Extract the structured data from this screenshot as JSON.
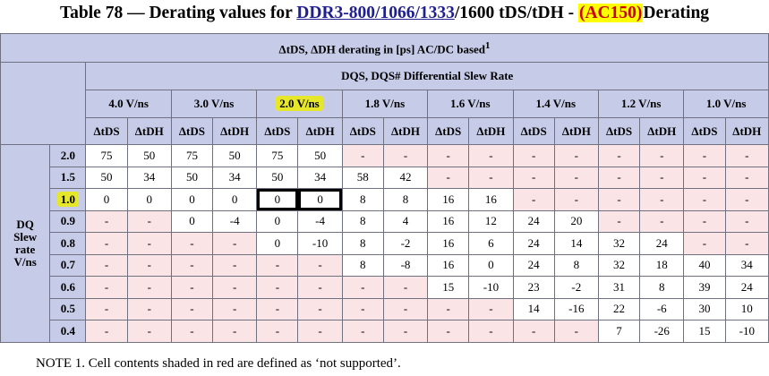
{
  "title": {
    "prefix": "Table 78 — Derating values for ",
    "link": "DDR3-800/1066/1333",
    "middle": "/1600 tDS/tDH - ",
    "highlight": "(AC150)",
    "suffix": "Derating"
  },
  "header": {
    "main": "ΔtDS, ΔDH derating in [ps]  AC/DC based",
    "main_superscript": "1",
    "group": "DQS, DQS# Differential Slew Rate",
    "slew_rates": [
      "4.0 V/ns",
      "3.0 V/ns",
      "2.0 V/ns",
      "1.8 V/ns",
      "1.6 V/ns",
      "1.4 V/ns",
      "1.2 V/ns",
      "1.0 V/ns"
    ],
    "sub_tds": "ΔtDS",
    "sub_tdh": "ΔtDH"
  },
  "side_label": [
    "DQ",
    "Slew",
    "rate",
    "V/ns"
  ],
  "rows": [
    {
      "rate": "2.0",
      "values": [
        "75",
        "50",
        "75",
        "50",
        "75",
        "50",
        "-",
        "-",
        "-",
        "-",
        "-",
        "-",
        "-",
        "-",
        "-",
        "-"
      ]
    },
    {
      "rate": "1.5",
      "values": [
        "50",
        "34",
        "50",
        "34",
        "50",
        "34",
        "58",
        "42",
        "-",
        "-",
        "-",
        "-",
        "-",
        "-",
        "-",
        "-"
      ]
    },
    {
      "rate": "1.0",
      "values": [
        "0",
        "0",
        "0",
        "0",
        "0",
        "0",
        "8",
        "8",
        "16",
        "16",
        "-",
        "-",
        "-",
        "-",
        "-",
        "-"
      ]
    },
    {
      "rate": "0.9",
      "values": [
        "-",
        "-",
        "0",
        "-4",
        "0",
        "-4",
        "8",
        "4",
        "16",
        "12",
        "24",
        "20",
        "-",
        "-",
        "-",
        "-"
      ]
    },
    {
      "rate": "0.8",
      "values": [
        "-",
        "-",
        "-",
        "-",
        "0",
        "-10",
        "8",
        "-2",
        "16",
        "6",
        "24",
        "14",
        "32",
        "24",
        "-",
        "-"
      ]
    },
    {
      "rate": "0.7",
      "values": [
        "-",
        "-",
        "-",
        "-",
        "-",
        "-",
        "8",
        "-8",
        "16",
        "0",
        "24",
        "8",
        "32",
        "18",
        "40",
        "34"
      ]
    },
    {
      "rate": "0.6",
      "values": [
        "-",
        "-",
        "-",
        "-",
        "-",
        "-",
        "-",
        "-",
        "15",
        "-10",
        "23",
        "-2",
        "31",
        "8",
        "39",
        "24"
      ]
    },
    {
      "rate": "0.5",
      "values": [
        "-",
        "-",
        "-",
        "-",
        "-",
        "-",
        "-",
        "-",
        "-",
        "-",
        "14",
        "-16",
        "22",
        "-6",
        "30",
        "10"
      ]
    },
    {
      "rate": "0.4",
      "values": [
        "-",
        "-",
        "-",
        "-",
        "-",
        "-",
        "-",
        "-",
        "-",
        "-",
        "-",
        "-",
        "7",
        "-26",
        "15",
        "-10"
      ]
    }
  ],
  "not_supported": [
    [
      6,
      7,
      8,
      9,
      10,
      11,
      12,
      13,
      14,
      15
    ],
    [
      8,
      9,
      10,
      11,
      12,
      13,
      14,
      15
    ],
    [
      10,
      11,
      12,
      13,
      14,
      15
    ],
    [
      0,
      1,
      12,
      13,
      14,
      15
    ],
    [
      0,
      1,
      2,
      3,
      14,
      15
    ],
    [
      0,
      1,
      2,
      3,
      4,
      5
    ],
    [
      0,
      1,
      2,
      3,
      4,
      5,
      6,
      7
    ],
    [
      0,
      1,
      2,
      3,
      4,
      5,
      6,
      7,
      8,
      9
    ],
    [
      0,
      1,
      2,
      3,
      4,
      5,
      6,
      7,
      8,
      9,
      10,
      11
    ]
  ],
  "highlighted_slew_rate_index": 2,
  "highlighted_row_index": 2,
  "boxed_cells": [
    [
      2,
      4
    ],
    [
      2,
      5
    ]
  ],
  "colors": {
    "header_bg": "#c6cbe8",
    "not_supported_bg": "#fbe4e6",
    "highlight": "#e6e62a",
    "title_highlight": "#ffff00",
    "title_highlight_text": "#cc0000"
  },
  "note": "NOTE 1. Cell contents shaded in red are defined as ‘not supported’."
}
